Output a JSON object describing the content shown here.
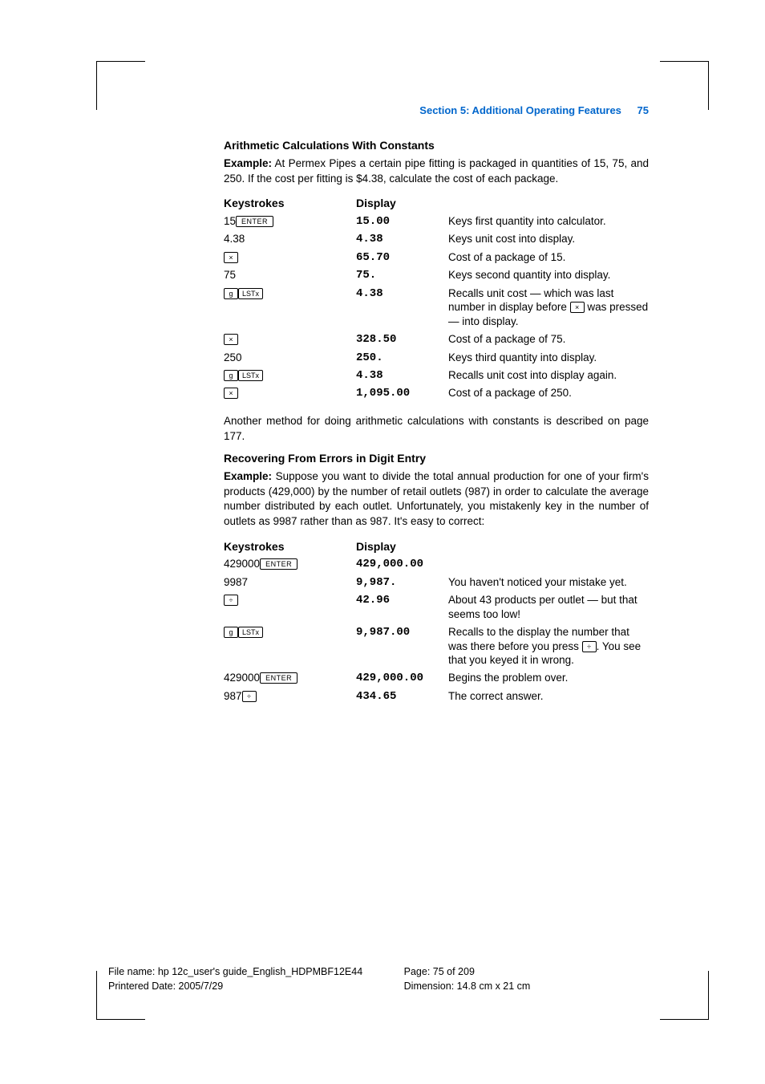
{
  "header": {
    "section": "Section 5: Additional Operating Features",
    "page": "75"
  },
  "h1": "Arithmetic Calculations With Constants",
  "ex1_label": "Example:",
  "ex1_text": " At Permex Pipes a certain pipe fitting is packaged in quantities of 15, 75, and 250. If the cost per fitting is $4.38, calculate the cost of each package.",
  "th_keys": "Keystrokes",
  "th_disp": "Display",
  "t1": {
    "r1": {
      "k_pre": "15",
      "k_key": "ENTER",
      "d": "15.00",
      "e": "Keys first quantity into calculator."
    },
    "r2": {
      "k": "4.38",
      "d": "4.38",
      "e": "Keys unit cost into display."
    },
    "r3": {
      "k_key": "×",
      "d": "65.70",
      "e": "Cost of a package of 15."
    },
    "r4": {
      "k": "75",
      "d": "75.",
      "e": "Keys second quantity into display."
    },
    "r5": {
      "k_key1": "g",
      "k_key2": "LSTx",
      "d": "4.38",
      "e1": "Recalls unit cost — which was last number in display before ",
      "e_key": "×",
      "e2": " was pressed — into display."
    },
    "r6": {
      "k_key": "×",
      "d": "328.50",
      "e": "Cost of a package of 75."
    },
    "r7": {
      "k": "250",
      "d": "250.",
      "e": "Keys third quantity into display."
    },
    "r8": {
      "k_key1": "g",
      "k_key2": "LSTx",
      "d": "4.38",
      "e": "Recalls unit cost into display again."
    },
    "r9": {
      "k_key": "×",
      "d": "1,095.00",
      "e": "Cost of a package of 250."
    }
  },
  "mid_para": "Another method for doing arithmetic calculations with constants is described on page 177.",
  "h2": "Recovering From Errors in Digit Entry",
  "ex2_label": "Example:",
  "ex2_text": " Suppose you want to divide the total annual production for one of your firm's products (429,000) by the number of retail outlets (987) in order to calculate the average number distributed by each outlet. Unfortunately, you mistakenly key in the number of outlets as 9987 rather than as 987. It's easy to correct:",
  "t2": {
    "r1": {
      "k_pre": "429000",
      "k_key": "ENTER",
      "d": "429,000.00",
      "e": ""
    },
    "r2": {
      "k": "9987",
      "d": "9,987.",
      "e": "You haven't noticed your mistake yet."
    },
    "r3": {
      "k_key": "÷",
      "d": "42.96",
      "e": "About 43 products per outlet — but that seems too low!"
    },
    "r4": {
      "k_key1": "g",
      "k_key2": "LSTx",
      "d": "9,987.00",
      "e1": "Recalls to the display the number that was there before you press ",
      "e_key": "÷",
      "e2": ". You see that you keyed it in wrong."
    },
    "r5": {
      "k_pre": "429000",
      "k_key": "ENTER",
      "d": "429,000.00",
      "e": "Begins the problem over."
    },
    "r6": {
      "k_pre": "987",
      "k_key": "÷",
      "d": "434.65",
      "e": "The correct answer."
    }
  },
  "footer": {
    "file": "File name: hp 12c_user's guide_English_HDPMBF12E44",
    "date": "Printered Date: 2005/7/29",
    "page": "Page: 75 of 209",
    "dim": "Dimension: 14.8 cm x 21 cm"
  }
}
